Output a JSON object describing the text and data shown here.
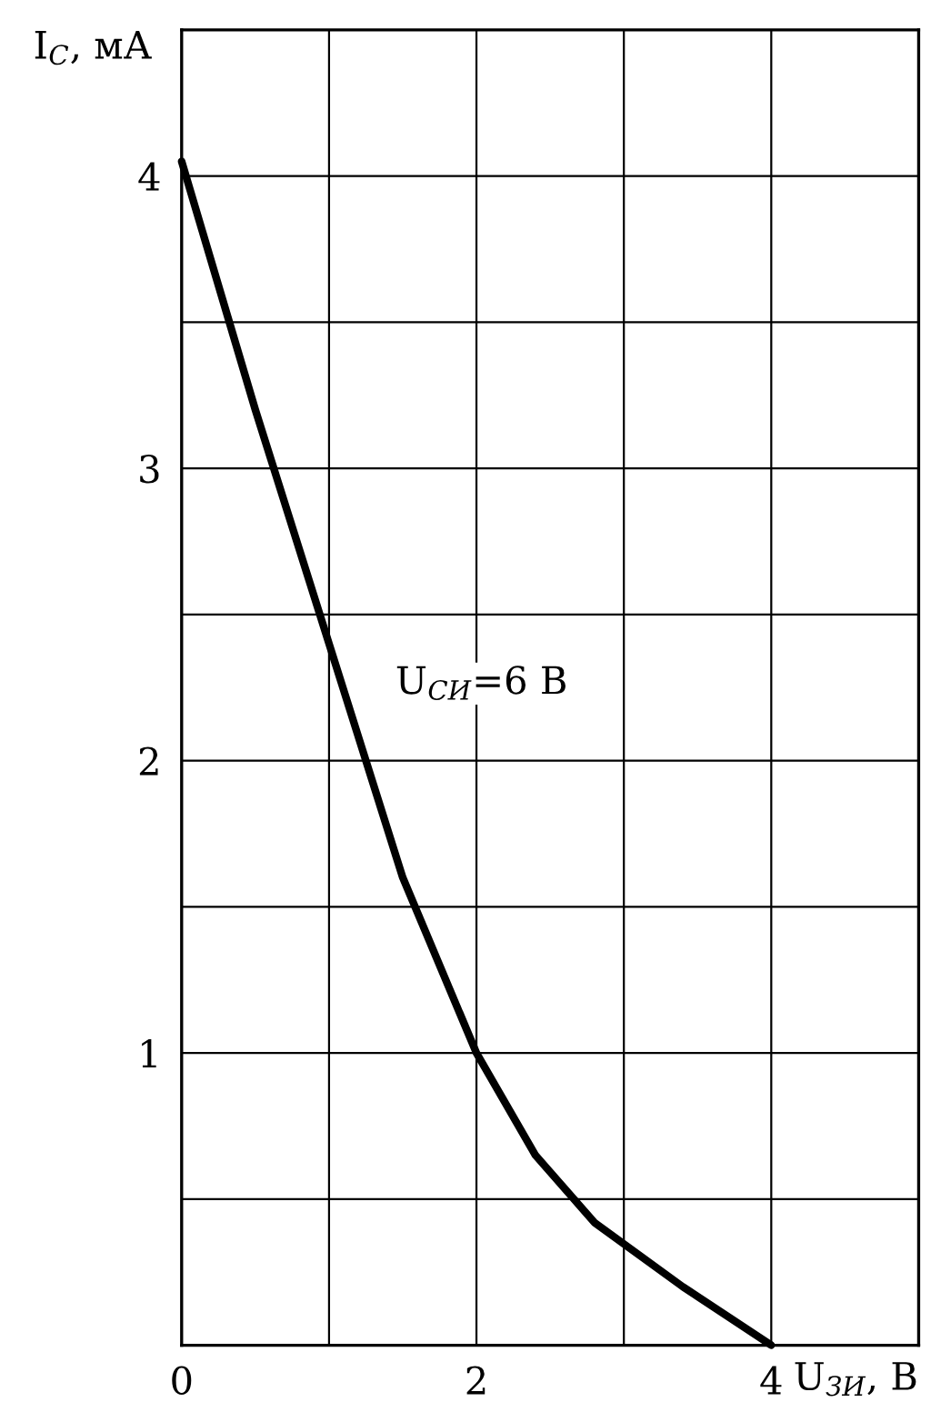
{
  "chart_data": {
    "type": "line",
    "xlabel": "U$_{ЗИ}$, В",
    "ylabel": "I$_{С}$, мА",
    "annotations": [
      "U$_{СИ}$=6 В"
    ],
    "x": [
      0,
      0.5,
      1,
      1.5,
      2,
      2.4,
      2.8,
      3.4,
      4
    ],
    "series": [
      {
        "color": "#000000",
        "values": [
          4.05,
          3.2,
          2.4,
          1.6,
          1.0,
          0.65,
          0.42,
          0.2,
          0
        ]
      }
    ],
    "xlim": [
      0,
      5
    ],
    "ylim": [
      0,
      4.5
    ],
    "xticks": [
      0,
      {
        "value": 1,
        "label": null
      },
      2,
      {
        "value": 3,
        "label": null
      },
      4,
      {
        "value": 5,
        "label": null
      }
    ],
    "yticks": [
      {
        "value": 0,
        "label": null
      },
      {
        "value": 0.5,
        "label": null
      },
      1,
      {
        "value": 1.5,
        "label": null
      },
      2,
      {
        "value": 2.5,
        "label": null
      },
      3,
      {
        "value": 3.5,
        "label": null
      },
      4,
      {
        "value": 4.5,
        "label": null
      }
    ],
    "grid": true,
    "line_style": "solid",
    "marker": "none"
  }
}
